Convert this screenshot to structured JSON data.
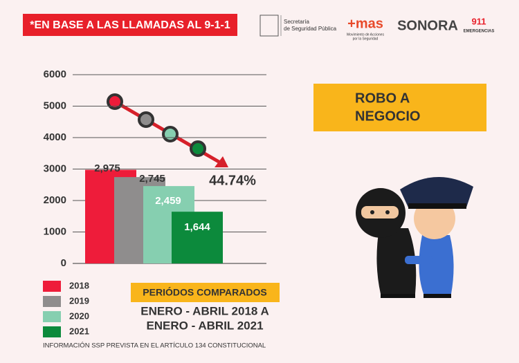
{
  "header": {
    "banner": "*EN BASE A LAS LLAMADAS AL 9-1-1",
    "logos": [
      "Secretaría",
      "de Seguridad Pública",
      "+mas",
      "Movimiento de Acciones",
      "por la Seguridad",
      "SONORA",
      "911",
      "EMERGENCIAS"
    ]
  },
  "chart_data": {
    "type": "bar",
    "categories": [
      "2018",
      "2019",
      "2020",
      "2021"
    ],
    "values": [
      2975,
      2745,
      2459,
      1644
    ],
    "value_labels": [
      "2,975",
      "2,745",
      "2,459",
      "1,644"
    ],
    "colors": [
      "#ee1c3a",
      "#8f8d8d",
      "#86cfb0",
      "#0c8a3c"
    ],
    "ylim": [
      0,
      6000
    ],
    "yticks": [
      0,
      1000,
      2000,
      3000,
      4000,
      5000,
      6000
    ],
    "grid": true,
    "annotation": "44.74%"
  },
  "crime": {
    "title_lines": [
      "ROBO A",
      "NEGOCIO"
    ]
  },
  "period": {
    "label": "PERIÓDOS COMPARADOS",
    "lines": [
      "ENERO - ABRIL 2018 A",
      "ENERO - ABRIL 2021"
    ]
  },
  "footer": "INFORMACIÓN SSP PREVISTA EN EL ARTÍCULO 134 CONSTITUCIONAL"
}
